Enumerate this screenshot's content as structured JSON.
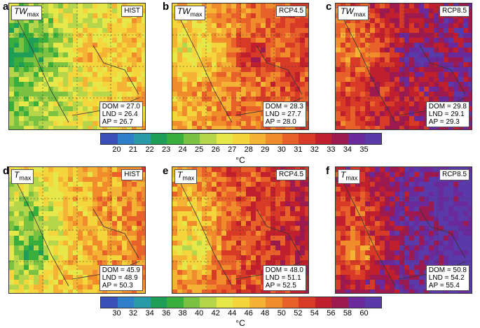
{
  "top_row": {
    "variable_main": "TW",
    "variable_sub": "max",
    "panels": [
      {
        "letter": "a",
        "scenario": "HIST",
        "dom": "DOM = 27.0",
        "lnd": "LND = 26.4",
        "ap": "AP = 26.7",
        "warmth": 0.35
      },
      {
        "letter": "b",
        "scenario": "RCP4.5",
        "dom": "DOM = 28.3",
        "lnd": "LND = 27.7",
        "ap": "AP = 28.0",
        "warmth": 0.55
      },
      {
        "letter": "c",
        "scenario": "RCP8.5",
        "dom": "DOM = 29.8",
        "lnd": "LND = 29.1",
        "ap": "AP = 29.3",
        "warmth": 0.72
      }
    ],
    "colorbar": {
      "labels": [
        "20",
        "21",
        "22",
        "23",
        "24",
        "25",
        "26",
        "27",
        "28",
        "29",
        "30",
        "31",
        "32",
        "33",
        "34",
        "35"
      ],
      "unit": "°C",
      "colors": [
        "#3b4fb8",
        "#2f7fc9",
        "#2b9aa8",
        "#1f9e58",
        "#3aae3c",
        "#7cc242",
        "#b5d64a",
        "#e6e84a",
        "#f5d53c",
        "#f5b335",
        "#f08c2c",
        "#e8602a",
        "#d83a28",
        "#c0202e",
        "#9c1a50",
        "#6a2a9c",
        "#5a3aa8"
      ]
    }
  },
  "bottom_row": {
    "variable_main": "T",
    "variable_sub": "max",
    "panels": [
      {
        "letter": "d",
        "scenario": "HIST",
        "dom": "DOM = 45.9",
        "lnd": "LND = 48.9",
        "ap": "AP = 50.3",
        "warmth": 0.45
      },
      {
        "letter": "e",
        "scenario": "RCP4.5",
        "dom": "DOM = 48.0",
        "lnd": "LND = 51.1",
        "ap": "AP = 52.5",
        "warmth": 0.62
      },
      {
        "letter": "f",
        "scenario": "RCP8.5",
        "dom": "DOM = 50.8",
        "lnd": "LND = 54.2",
        "ap": "AP = 55.4",
        "warmth": 0.8
      }
    ],
    "colorbar": {
      "labels": [
        "30",
        "32",
        "34",
        "36",
        "38",
        "40",
        "42",
        "44",
        "46",
        "48",
        "50",
        "52",
        "54",
        "56",
        "58",
        "60"
      ],
      "unit": "°C",
      "colors": [
        "#3b4fb8",
        "#2f7fc9",
        "#2b9aa8",
        "#1f9e58",
        "#3aae3c",
        "#7cc242",
        "#b5d64a",
        "#e6e84a",
        "#f5d53c",
        "#f5b335",
        "#f08c2c",
        "#e8602a",
        "#d83a28",
        "#c0202e",
        "#9c1a50",
        "#6a2a9c",
        "#5a3aa8"
      ]
    }
  }
}
